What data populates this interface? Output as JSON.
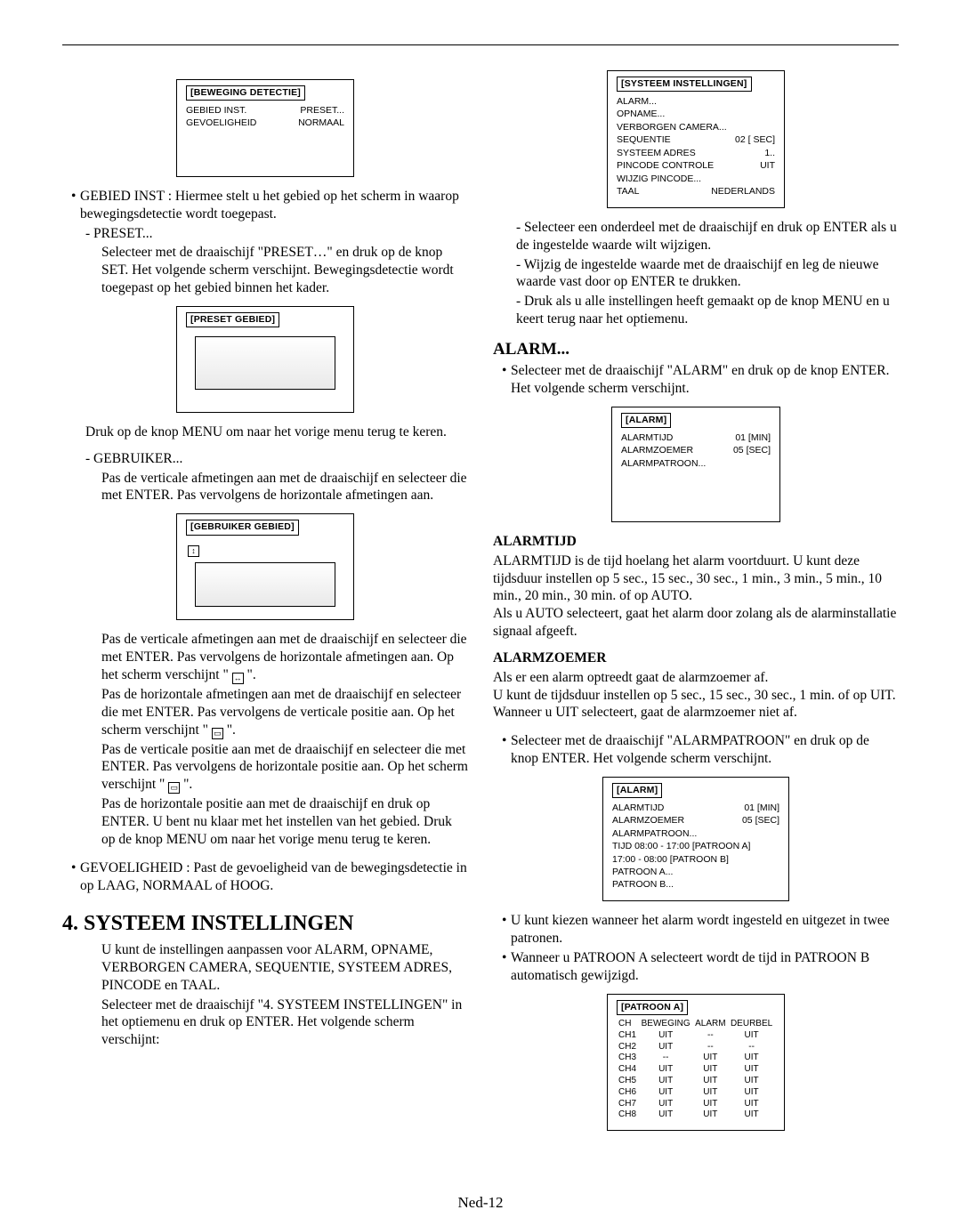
{
  "left": {
    "box1": {
      "title": "[BEWEGING DETECTIE]",
      "rows": [
        {
          "l": "GEBIED INST.",
          "r": "PRESET..."
        },
        {
          "l": "GEVOELIGHEID",
          "r": "NORMAAL"
        }
      ]
    },
    "b1": "GEBIED INST : Hiermee stelt u het gebied op het scherm in waarop bewegingsdetectie wordt toegepast.",
    "d1_l": "- PRESET...",
    "d1_b": "Selecteer met de draaischijf \"PRESET…\" en druk op de knop SET. Het volgende scherm verschijnt. Bewegingsdetectie wordt toegepast op het gebied binnen het kader.",
    "box2": {
      "title": "[PRESET GEBIED]"
    },
    "after2": "Druk op de knop MENU om naar het vorige menu terug te keren.",
    "d2_l": "- GEBRUIKER...",
    "d2_b": "Pas de verticale afmetingen aan met de draaischijf en selecteer die met ENTER. Pas vervolgens de horizontale afmetingen aan.",
    "box3": {
      "title": "[GEBRUIKER GEBIED]"
    },
    "p1": " Pas de verticale afmetingen aan met de draaischijf en selecteer die met ENTER. Pas vervolgens de horizontale afmetingen aan. Op het scherm verschijnt \" ",
    "p1b": " \".",
    "p2": "Pas de horizontale afmetingen aan met de draaischijf en selecteer die met ENTER. Pas vervolgens de verticale positie aan. Op het scherm verschijnt \" ",
    "p2b": " \".",
    "p3": "Pas de verticale positie aan met de draaischijf en selecteer die met ENTER. Pas vervolgens de horizontale positie aan. Op het scherm verschijnt \" ",
    "p3b": " \".",
    "p4": "Pas de horizontale positie aan met de draaischijf en druk op ENTER. U bent nu klaar met het instellen van het gebied. Druk op de knop MENU om naar het vorige menu terug te keren.",
    "b2": "GEVOELIGHEID : Past de gevoeligheid van de bewegingsdetectie in op LAAG, NORMAAL of HOOG.",
    "h4": "4. SYSTEEM INSTELLINGEN",
    "h4_p1": "U kunt de instellingen aanpassen voor ALARM, OPNAME, VERBORGEN CAMERA, SEQUENTIE, SYSTEEM ADRES, PINCODE en TAAL.",
    "h4_p2": "Selecteer met de draaischijf \"4. SYSTEEM INSTELLINGEN\" in het optiemenu en druk op ENTER. Het volgende scherm verschijnt:"
  },
  "right": {
    "sysbox": {
      "title": "[SYSTEEM INSTELLINGEN]",
      "lines": [
        {
          "l": "ALARM...",
          "r": ""
        },
        {
          "l": "OPNAME...",
          "r": ""
        },
        {
          "l": "VERBORGEN CAMERA...",
          "r": ""
        },
        {
          "l": "SEQUENTIE",
          "r": "02 [ SEC]"
        },
        {
          "l": "SYSTEEM ADRES",
          "r": "1.."
        },
        {
          "l": "PINCODE CONTROLE",
          "r": "UIT"
        },
        {
          "l": "WIJZIG PINCODE...",
          "r": ""
        },
        {
          "l": "TAAL",
          "r": "NEDERLANDS"
        }
      ]
    },
    "d1": "Selecteer een onderdeel met de draaischijf en druk op ENTER als u de ingestelde waarde wilt wijzigen.",
    "d2": "Wijzig de ingestelde waarde met de draaischijf en leg de nieuwe waarde vast door op ENTER te drukken.",
    "d3": "Druk als u alle instellingen heeft gemaakt op de knop MENU en u keert terug naar het optiemenu.",
    "alarm_h": "ALARM...",
    "alarm_b": "Selecteer met de draaischijf \"ALARM\" en druk op de knop ENTER. Het volgende scherm verschijnt.",
    "abox1": {
      "title": "[ALARM]",
      "rows": [
        {
          "l": "ALARMTIJD",
          "r": "01 [MIN]"
        },
        {
          "l": "ALARMZOEMER",
          "r": "05 [SEC]"
        },
        {
          "l": "ALARMPATROON...",
          "r": ""
        }
      ]
    },
    "at_h": "ALARMTIJD",
    "at_p1": "ALARMTIJD is de tijd hoelang het alarm voortduurt. U kunt deze tijdsduur instellen op 5 sec., 15 sec., 30 sec., 1 min., 3 min., 5 min., 10 min., 20 min., 30 min. of op AUTO.",
    "at_p2": "Als u AUTO selecteert, gaat het alarm door zolang als de alarminstallatie signaal afgeeft.",
    "az_h": "ALARMZOEMER",
    "az_p1": "Als er een alarm optreedt gaat de alarmzoemer af.",
    "az_p2": "U kunt de tijdsduur instellen op 5 sec., 15 sec., 30 sec., 1 min. of op UIT. Wanneer u UIT selecteert, gaat de alarmzoemer niet af.",
    "ap_b": "Selecteer met de draaischijf \"ALARMPATROON\" en druk op de knop ENTER. Het volgende scherm verschijnt.",
    "abox2": {
      "title": "[ALARM]",
      "rows": [
        {
          "l": "ALARMTIJD",
          "r": "01 [MIN]"
        },
        {
          "l": "ALARMZOEMER",
          "r": "05 [SEC]"
        },
        {
          "l": "ALARMPATROON...",
          "r": ""
        }
      ],
      "extra": [
        "TIJD   08:00 - 17:00 [PATROON A]",
        "          17:00 - 08:00 [PATROON B]",
        "PATROON A...",
        "PATROON B..."
      ]
    },
    "ap_l1": "U kunt kiezen wanneer het alarm wordt ingesteld en uitgezet in twee patronen.",
    "ap_l2": "Wanneer u PATROON A selecteert wordt de tijd in PATROON B automatisch gewijzigd.",
    "pbox": {
      "title": "[PATROON A]",
      "head": [
        "CH",
        "BEWEGING",
        "ALARM",
        "DEURBEL"
      ],
      "rows": [
        [
          "CH1",
          "UIT",
          "--",
          "UIT"
        ],
        [
          "CH2",
          "UIT",
          "--",
          "--"
        ],
        [
          "CH3",
          "--",
          "UIT",
          "UIT"
        ],
        [
          "CH4",
          "UIT",
          "UIT",
          "UIT"
        ],
        [
          "CH5",
          "UIT",
          "UIT",
          "UIT"
        ],
        [
          "CH6",
          "UIT",
          "UIT",
          "UIT"
        ],
        [
          "CH7",
          "UIT",
          "UIT",
          "UIT"
        ],
        [
          "CH8",
          "UIT",
          "UIT",
          "UIT"
        ]
      ]
    }
  },
  "footer": "Ned-12"
}
